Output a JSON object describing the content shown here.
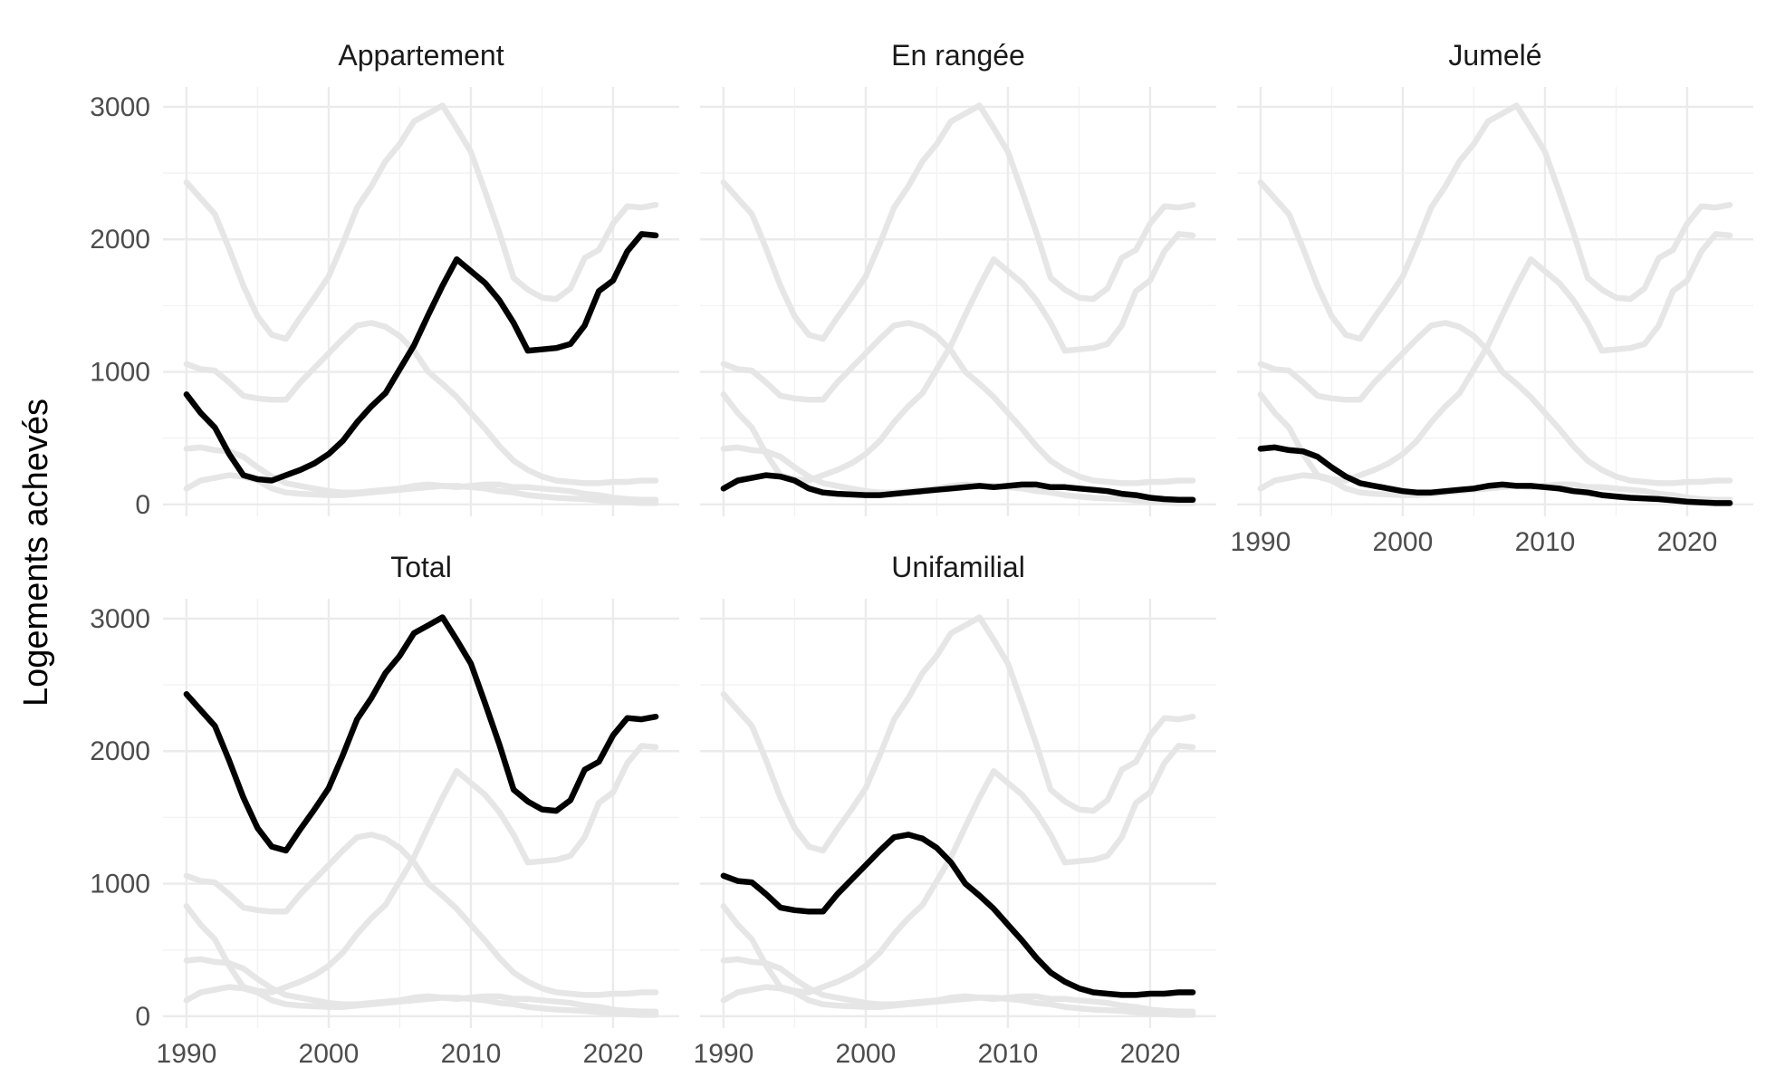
{
  "chart_data": {
    "type": "line",
    "ylabel": "Logements achevés",
    "xlabel": "",
    "xlim": [
      1990,
      2023
    ],
    "ylim": [
      0,
      3000
    ],
    "x_ticks": [
      1990,
      2000,
      2010,
      2020
    ],
    "y_ticks": [
      0,
      1000,
      2000,
      3000
    ],
    "y_tick_labels": [
      "0",
      "1000",
      "2000",
      "3000"
    ],
    "x_tick_labels": [
      "1990",
      "2000",
      "2010",
      "2020"
    ],
    "grid": true,
    "facets": [
      "Appartement",
      "En rangée",
      "Jumelé",
      "Total",
      "Unifamilial"
    ],
    "x": [
      1990,
      1991,
      1992,
      1993,
      1994,
      1995,
      1996,
      1997,
      1998,
      1999,
      2000,
      2001,
      2002,
      2003,
      2004,
      2005,
      2006,
      2007,
      2008,
      2009,
      2010,
      2011,
      2012,
      2013,
      2014,
      2015,
      2016,
      2017,
      2018,
      2019,
      2020,
      2021,
      2022,
      2023
    ],
    "series": [
      {
        "name": "Appartement",
        "values": [
          830,
          690,
          580,
          380,
          220,
          190,
          180,
          220,
          260,
          310,
          380,
          480,
          620,
          740,
          840,
          1020,
          1200,
          1430,
          1650,
          1850,
          1760,
          1670,
          1540,
          1370,
          1160,
          1170,
          1180,
          1210,
          1350,
          1610,
          1690,
          1910,
          2040,
          2030
        ]
      },
      {
        "name": "En rangée",
        "values": [
          120,
          180,
          200,
          220,
          210,
          180,
          120,
          90,
          80,
          75,
          70,
          70,
          80,
          90,
          100,
          110,
          120,
          130,
          140,
          130,
          140,
          150,
          150,
          130,
          130,
          120,
          110,
          100,
          80,
          70,
          50,
          40,
          35,
          35
        ]
      },
      {
        "name": "Jumelé",
        "values": [
          420,
          430,
          410,
          400,
          360,
          280,
          210,
          160,
          140,
          120,
          100,
          90,
          90,
          100,
          110,
          120,
          140,
          150,
          140,
          140,
          130,
          120,
          100,
          90,
          70,
          60,
          50,
          45,
          40,
          30,
          20,
          15,
          10,
          10
        ]
      },
      {
        "name": "Total",
        "values": [
          2430,
          2310,
          2190,
          1930,
          1650,
          1420,
          1280,
          1250,
          1410,
          1560,
          1720,
          1970,
          2240,
          2400,
          2590,
          2720,
          2890,
          2950,
          3010,
          2840,
          2660,
          2360,
          2050,
          1710,
          1620,
          1560,
          1550,
          1630,
          1860,
          1920,
          2120,
          2250,
          2240,
          2260
        ]
      },
      {
        "name": "Unifamilial",
        "values": [
          1060,
          1020,
          1010,
          920,
          820,
          800,
          790,
          790,
          920,
          1030,
          1140,
          1250,
          1350,
          1370,
          1340,
          1270,
          1160,
          1000,
          910,
          810,
          690,
          570,
          440,
          330,
          260,
          210,
          180,
          170,
          160,
          160,
          170,
          170,
          180,
          180
        ]
      }
    ]
  }
}
